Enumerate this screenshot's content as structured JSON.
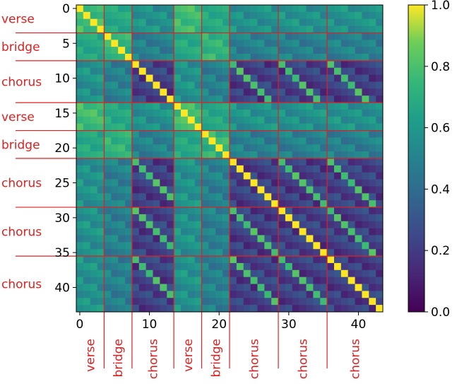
{
  "chart_data": {
    "type": "heatmap",
    "title": "",
    "xlabel": "",
    "ylabel": "",
    "n": 44,
    "x_ticks": [
      "0",
      "10",
      "20",
      "30",
      "40"
    ],
    "y_ticks": [
      "0",
      "5",
      "10",
      "15",
      "20",
      "25",
      "30",
      "35",
      "40"
    ],
    "x_tick_values": [
      0,
      10,
      20,
      30,
      40
    ],
    "y_tick_values": [
      0,
      5,
      10,
      15,
      20,
      25,
      30,
      35,
      40
    ],
    "colorbar": {
      "range": [
        0.0,
        1.0
      ],
      "ticks": [
        "0.0",
        "0.2",
        "0.4",
        "0.6",
        "0.8",
        "1.0"
      ],
      "tick_values": [
        0.0,
        0.2,
        0.4,
        0.6,
        0.8,
        1.0
      ],
      "colormap": "viridis"
    },
    "sections": [
      {
        "label": "verse",
        "start": 0,
        "end": 4
      },
      {
        "label": "bridge",
        "start": 4,
        "end": 8
      },
      {
        "label": "chorus",
        "start": 8,
        "end": 14
      },
      {
        "label": "verse",
        "start": 14,
        "end": 18
      },
      {
        "label": "bridge",
        "start": 18,
        "end": 22
      },
      {
        "label": "chorus",
        "start": 22,
        "end": 29
      },
      {
        "label": "chorus",
        "start": 29,
        "end": 36
      },
      {
        "label": "chorus",
        "start": 36,
        "end": 44
      }
    ],
    "section_line_color": "#e02020",
    "block_similarity": {
      "diagonal": 1.0,
      "verse_verse": 0.78,
      "bridge_bridge": 0.74,
      "verse_bridge": 0.68,
      "chorus_chorus": 0.22,
      "chorus_repeat_diagonal": 0.8,
      "verse_chorus": 0.58,
      "bridge_chorus": 0.5
    }
  }
}
